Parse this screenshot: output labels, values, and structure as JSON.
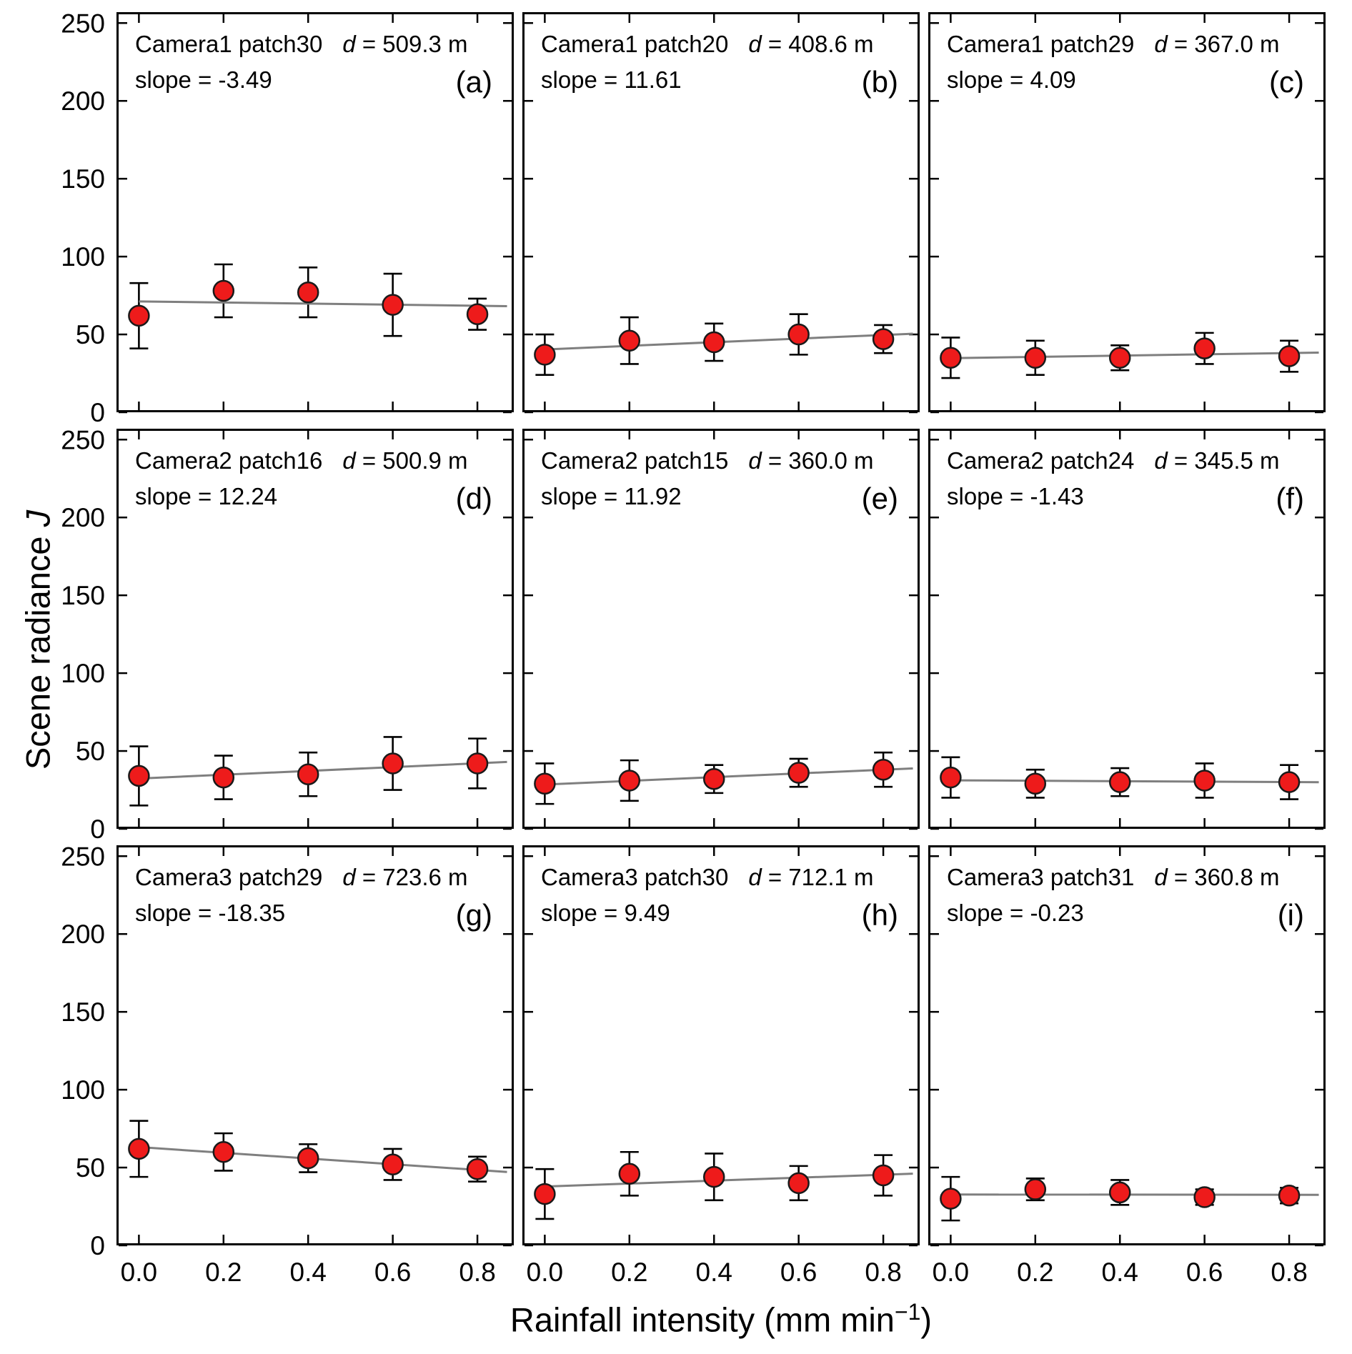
{
  "figure": {
    "xlabel_text": "Rainfall intensity (mm min",
    "xlabel_sup": "−1",
    "xlabel_end": ")",
    "ylabel_text": "Scene radiance",
    "ylabel_var": "J"
  },
  "axes": {
    "xlim": [
      -0.053,
      0.886
    ],
    "ylim": [
      0,
      257
    ],
    "xticks": [
      0.0,
      0.2,
      0.4,
      0.6,
      0.8
    ],
    "xtick_labels": [
      "0.0",
      "0.2",
      "0.4",
      "0.6",
      "0.8"
    ],
    "yticks": [
      0,
      50,
      100,
      150,
      200,
      250
    ],
    "ytick_labels": [
      "0",
      "50",
      "100",
      "150",
      "200",
      "250"
    ],
    "line_x_start": 0.0,
    "line_x_end": 0.87,
    "colors": {
      "marker_fill": "#ee1b1b",
      "marker_edge": "#1a1a1a",
      "fit_line": "#7f7f7f",
      "axis": "#000000",
      "error_bar": "#000000"
    }
  },
  "chart_data": [
    {
      "type": "scatter",
      "panel_label": "(a)",
      "title": "Camera1 patch30",
      "d_symbol": "d",
      "d_text": "= 509.3 m",
      "slope_text": "slope = -3.49",
      "slope": -3.49,
      "x": [
        0.0,
        0.2,
        0.4,
        0.6,
        0.8
      ],
      "y": [
        62,
        78,
        77,
        69,
        63
      ],
      "yerr": [
        21,
        17,
        16,
        20,
        10
      ]
    },
    {
      "type": "scatter",
      "panel_label": "(b)",
      "title": "Camera1 patch20",
      "d_symbol": "d",
      "d_text": "= 408.6 m",
      "slope_text": "slope = 11.61",
      "slope": 11.61,
      "x": [
        0.0,
        0.2,
        0.4,
        0.6,
        0.8
      ],
      "y": [
        37,
        46,
        45,
        50,
        47
      ],
      "yerr": [
        13,
        15,
        12,
        13,
        9
      ]
    },
    {
      "type": "scatter",
      "panel_label": "(c)",
      "title": "Camera1 patch29",
      "d_symbol": "d",
      "d_text": "= 367.0 m",
      "slope_text": "slope = 4.09",
      "slope": 4.09,
      "x": [
        0.0,
        0.2,
        0.4,
        0.6,
        0.8
      ],
      "y": [
        35,
        35,
        35,
        41,
        36
      ],
      "yerr": [
        13,
        11,
        8,
        10,
        10
      ]
    },
    {
      "type": "scatter",
      "panel_label": "(d)",
      "title": "Camera2 patch16",
      "d_symbol": "d",
      "d_text": "= 500.9 m",
      "slope_text": "slope = 12.24",
      "slope": 12.24,
      "x": [
        0.0,
        0.2,
        0.4,
        0.6,
        0.8
      ],
      "y": [
        34,
        33,
        35,
        42,
        42
      ],
      "yerr": [
        19,
        14,
        14,
        17,
        16
      ]
    },
    {
      "type": "scatter",
      "panel_label": "(e)",
      "title": "Camera2 patch15",
      "d_symbol": "d",
      "d_text": "= 360.0 m",
      "slope_text": "slope = 11.92",
      "slope": 11.92,
      "x": [
        0.0,
        0.2,
        0.4,
        0.6,
        0.8
      ],
      "y": [
        29,
        31,
        32,
        36,
        38
      ],
      "yerr": [
        13,
        13,
        9,
        9,
        11
      ]
    },
    {
      "type": "scatter",
      "panel_label": "(f)",
      "title": "Camera2 patch24",
      "d_symbol": "d",
      "d_text": "= 345.5 m",
      "slope_text": "slope = -1.43",
      "slope": -1.43,
      "x": [
        0.0,
        0.2,
        0.4,
        0.6,
        0.8
      ],
      "y": [
        33,
        29,
        30,
        31,
        30
      ],
      "yerr": [
        13,
        9,
        9,
        11,
        11
      ]
    },
    {
      "type": "scatter",
      "panel_label": "(g)",
      "title": "Camera3 patch29",
      "d_symbol": "d",
      "d_text": "= 723.6 m",
      "slope_text": "slope = -18.35",
      "slope": -18.35,
      "x": [
        0.0,
        0.2,
        0.4,
        0.6,
        0.8
      ],
      "y": [
        62,
        60,
        56,
        52,
        49
      ],
      "yerr": [
        18,
        12,
        9,
        10,
        8
      ]
    },
    {
      "type": "scatter",
      "panel_label": "(h)",
      "title": "Camera3 patch30",
      "d_symbol": "d",
      "d_text": "= 712.1 m",
      "slope_text": "slope = 9.49",
      "slope": 9.49,
      "x": [
        0.0,
        0.2,
        0.4,
        0.6,
        0.8
      ],
      "y": [
        33,
        46,
        44,
        40,
        45
      ],
      "yerr": [
        16,
        14,
        15,
        11,
        13
      ]
    },
    {
      "type": "scatter",
      "panel_label": "(i)",
      "title": "Camera3 patch31",
      "d_symbol": "d",
      "d_text": "= 360.8 m",
      "slope_text": "slope = -0.23",
      "slope": -0.23,
      "x": [
        0.0,
        0.2,
        0.4,
        0.6,
        0.8
      ],
      "y": [
        30,
        36,
        34,
        31,
        32
      ],
      "yerr": [
        14,
        7,
        8,
        5,
        5
      ]
    }
  ]
}
